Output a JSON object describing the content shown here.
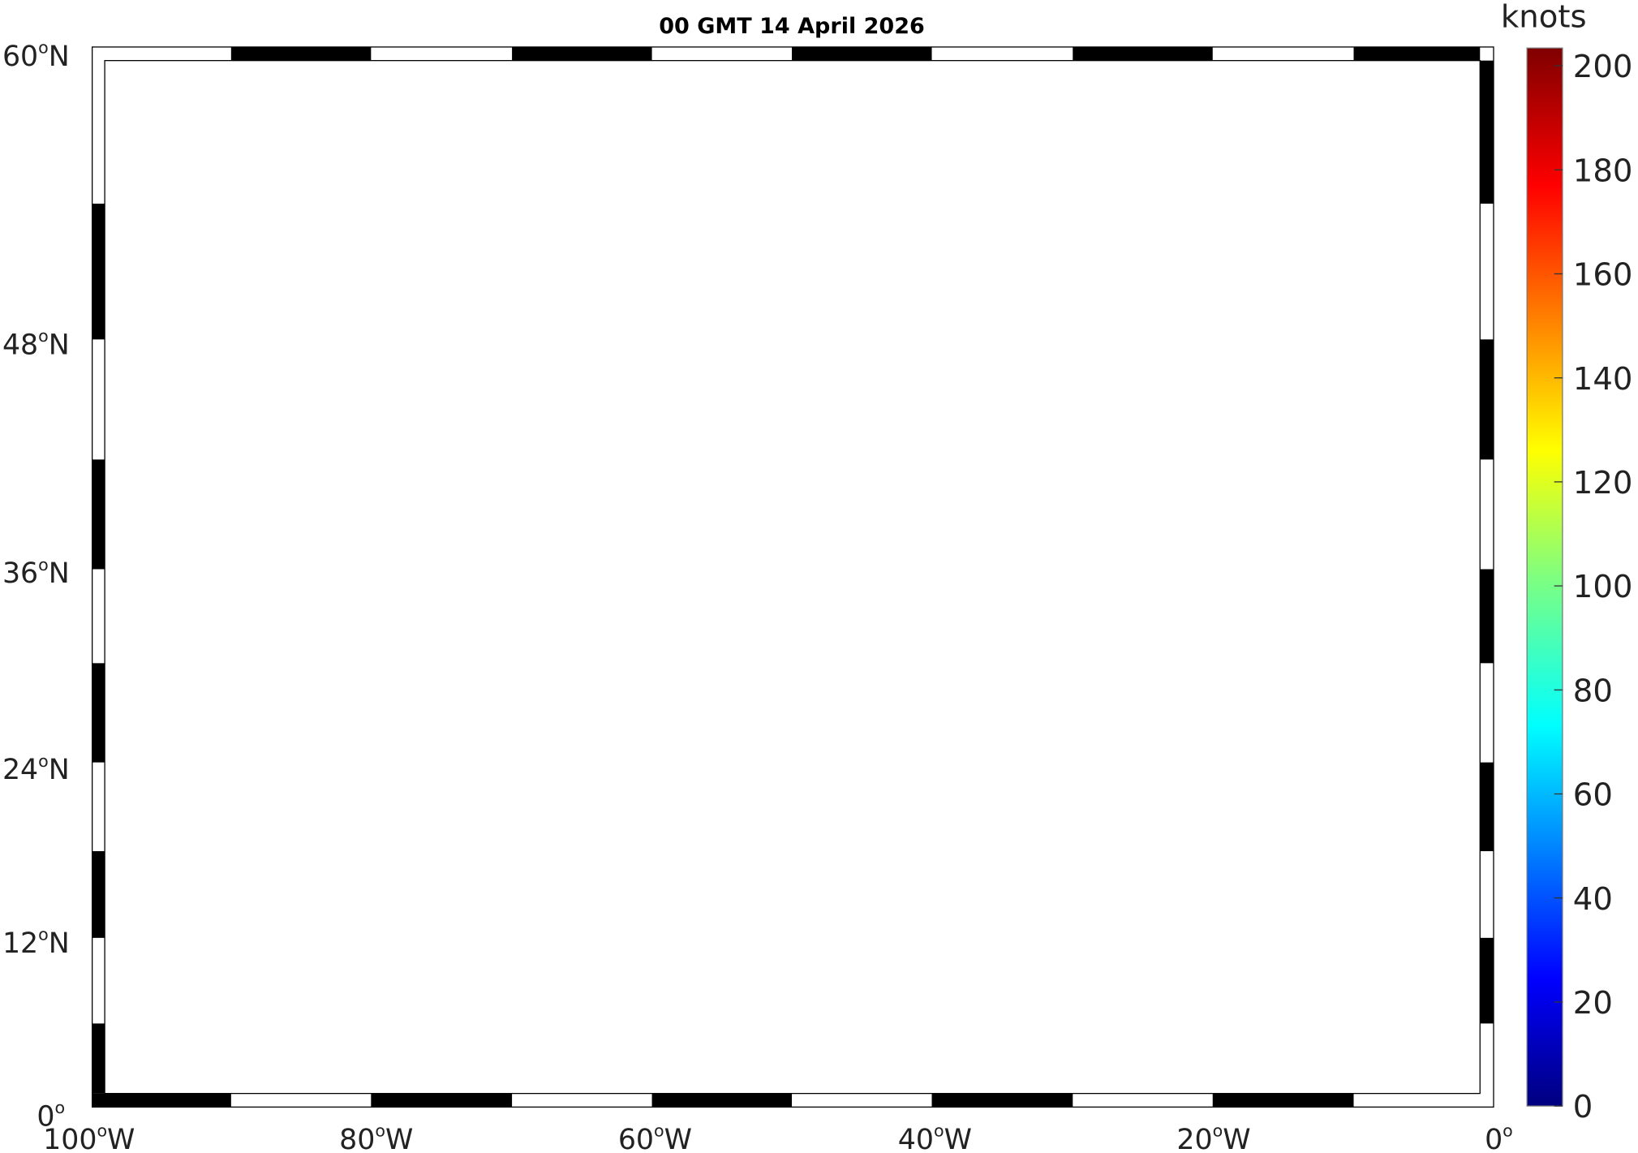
{
  "title": "00 GMT 14 April 2026",
  "degree_symbol": "o",
  "lat_labels": [
    {
      "deg": "60",
      "hemi": "N"
    },
    {
      "deg": "48",
      "hemi": "N"
    },
    {
      "deg": "36",
      "hemi": "N"
    },
    {
      "deg": "24",
      "hemi": "N"
    },
    {
      "deg": "12",
      "hemi": "N"
    },
    {
      "deg": "0",
      "hemi": ""
    }
  ],
  "lon_labels": [
    {
      "deg": "100",
      "hemi": "W"
    },
    {
      "deg": "80",
      "hemi": "W"
    },
    {
      "deg": "60",
      "hemi": "W"
    },
    {
      "deg": "40",
      "hemi": "W"
    },
    {
      "deg": "20",
      "hemi": "W"
    },
    {
      "deg": "0",
      "hemi": ""
    }
  ],
  "colorbar": {
    "unit_label": "knots",
    "colormap": "jet",
    "min": 0,
    "max": 200,
    "ticks": [
      "200",
      "180",
      "160",
      "140",
      "120",
      "100",
      "80",
      "60",
      "40",
      "20",
      "0"
    ]
  },
  "colors": {
    "land": "#739873",
    "lakes": "#ffffff",
    "low_wind": "#00007f",
    "high_wind": "#7f0000"
  }
}
